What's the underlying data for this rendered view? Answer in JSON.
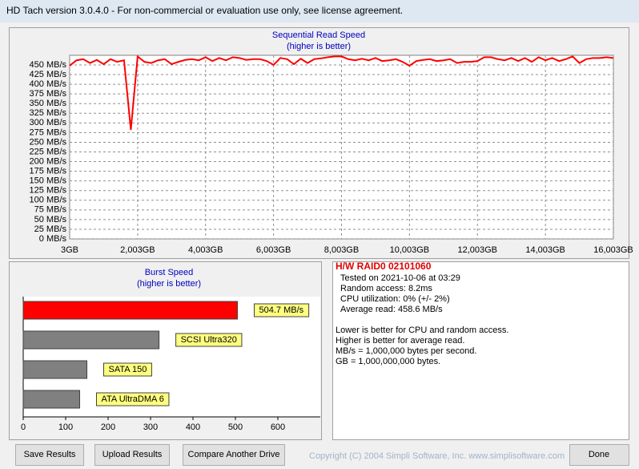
{
  "window_title": "HD Tach version 3.0.4.0  - For non-commercial or evaluation use only, see license agreement.",
  "chart_data": [
    {
      "type": "line",
      "title": "Sequential Read Speed",
      "subtitle": "(higher is better)",
      "x": [
        3,
        203,
        403,
        603,
        803,
        1003,
        1203,
        1403,
        1603,
        1803,
        2003,
        2203,
        2403,
        2603,
        2803,
        3003,
        3203,
        3403,
        3603,
        3803,
        4003,
        4203,
        4403,
        4603,
        4803,
        5003,
        5203,
        5403,
        5603,
        5803,
        6003,
        6203,
        6403,
        6603,
        6803,
        7003,
        7203,
        7403,
        7603,
        7803,
        8003,
        8203,
        8403,
        8603,
        8803,
        9003,
        9203,
        9403,
        9603,
        9803,
        10003,
        10203,
        10403,
        10603,
        10803,
        11003,
        11203,
        11403,
        11603,
        11803,
        12003,
        12203,
        12403,
        12603,
        12803,
        13003,
        13203,
        13403,
        13603,
        13803,
        14003,
        14203,
        14403,
        14603,
        14803,
        15003,
        15203,
        15403,
        15603,
        15803,
        16003
      ],
      "series": [
        {
          "color": "#ff0000",
          "values": [
            448,
            462,
            465,
            455,
            463,
            452,
            465,
            458,
            462,
            282,
            472,
            458,
            455,
            462,
            465,
            452,
            458,
            463,
            465,
            462,
            470,
            460,
            468,
            462,
            470,
            468,
            463,
            465,
            465,
            460,
            450,
            468,
            465,
            452,
            466,
            455,
            465,
            467,
            470,
            472,
            472,
            465,
            462,
            466,
            462,
            468,
            460,
            462,
            465,
            458,
            448,
            460,
            463,
            465,
            460,
            462,
            465,
            455,
            458,
            458,
            460,
            470,
            470,
            465,
            462,
            468,
            460,
            468,
            458,
            470,
            462,
            468,
            460,
            465,
            472,
            455,
            465,
            468,
            468,
            470,
            468
          ]
        }
      ],
      "xlim": [
        3,
        16003
      ],
      "ylim": [
        0,
        475
      ],
      "xticks": [
        {
          "value": 3,
          "label": "3GB"
        },
        {
          "value": 2003,
          "label": "2,003GB"
        },
        {
          "value": 4003,
          "label": "4,003GB"
        },
        {
          "value": 6003,
          "label": "6,003GB"
        },
        {
          "value": 8003,
          "label": "8,003GB"
        },
        {
          "value": 10003,
          "label": "10,003GB"
        },
        {
          "value": 12003,
          "label": "12,003GB"
        },
        {
          "value": 14003,
          "label": "14,003GB"
        },
        {
          "value": 16003,
          "label": "16,003GB"
        }
      ],
      "yticks": [
        {
          "value": 0,
          "label": "0 MB/s"
        },
        {
          "value": 25,
          "label": "25 MB/s"
        },
        {
          "value": 50,
          "label": "50 MB/s"
        },
        {
          "value": 75,
          "label": "75 MB/s"
        },
        {
          "value": 100,
          "label": "100 MB/s"
        },
        {
          "value": 125,
          "label": "125 MB/s"
        },
        {
          "value": 150,
          "label": "150 MB/s"
        },
        {
          "value": 175,
          "label": "175 MB/s"
        },
        {
          "value": 200,
          "label": "200 MB/s"
        },
        {
          "value": 225,
          "label": "225 MB/s"
        },
        {
          "value": 250,
          "label": "250 MB/s"
        },
        {
          "value": 275,
          "label": "275 MB/s"
        },
        {
          "value": 300,
          "label": "300 MB/s"
        },
        {
          "value": 325,
          "label": "325 MB/s"
        },
        {
          "value": 350,
          "label": "350 MB/s"
        },
        {
          "value": 375,
          "label": "375 MB/s"
        },
        {
          "value": 400,
          "label": "400 MB/s"
        },
        {
          "value": 425,
          "label": "425 MB/s"
        },
        {
          "value": 450,
          "label": "450 MB/s"
        }
      ],
      "grid": true
    },
    {
      "type": "hbar",
      "title": "Burst Speed",
      "subtitle": "(higher is better)",
      "categories": [
        null,
        "SCSI Ultra320",
        "SATA 150",
        "ATA UltraDMA 6"
      ],
      "values": [
        504.7,
        320,
        150,
        133
      ],
      "value_labels": [
        "504.7 MB/s",
        null,
        null,
        null
      ],
      "colors": [
        "#ff0000",
        "#808080",
        "#808080",
        "#808080"
      ],
      "xlim": [
        0,
        700
      ],
      "xticks": [
        0,
        100,
        200,
        300,
        400,
        500,
        600
      ]
    }
  ],
  "info": {
    "drive": "H/W RAID0 02101060",
    "details": [
      "Tested on 2021-10-06 at 03:29",
      "Random access: 8.2ms",
      "CPU utilization: 0% (+/- 2%)",
      "Average read: 458.6 MB/s"
    ],
    "notes": [
      "Lower is better for CPU and random access.",
      "Higher is better for average read.",
      "MB/s = 1,000,000 bytes per second.",
      "GB = 1,000,000,000 bytes."
    ]
  },
  "buttons": [
    "Save Results",
    "Upload Results",
    "Compare Another Drive",
    "Done"
  ],
  "copyright": "Copyright (C) 2004 Simpli Software, Inc. www.simplisoftware.com"
}
